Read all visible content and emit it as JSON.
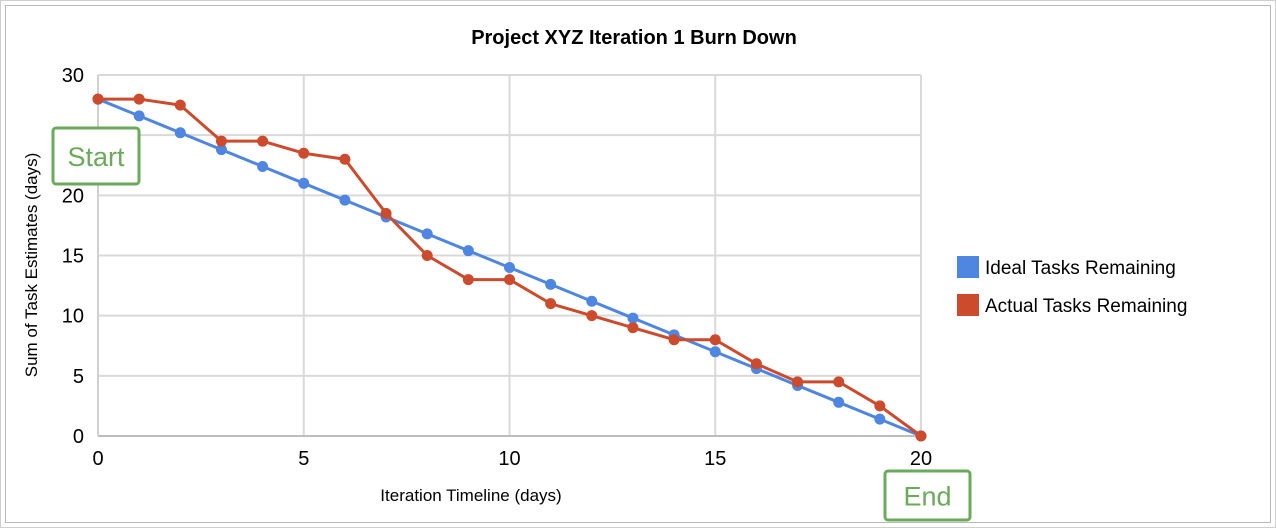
{
  "chart_data": {
    "type": "line",
    "title": "Project XYZ Iteration 1 Burn Down",
    "xlabel": "Iteration Timeline (days)",
    "ylabel": "Sum of Task Estimates (days)",
    "xlim": [
      0,
      20
    ],
    "ylim": [
      0,
      30
    ],
    "x_ticks": [
      "0",
      "5",
      "10",
      "15",
      "20"
    ],
    "y_ticks": [
      "0",
      "5",
      "10",
      "15",
      "20",
      "25",
      "30"
    ],
    "grid": true,
    "legend_position": "right",
    "x": [
      0,
      1,
      2,
      3,
      4,
      5,
      6,
      7,
      8,
      9,
      10,
      11,
      12,
      13,
      14,
      15,
      16,
      17,
      18,
      19,
      20
    ],
    "series": [
      {
        "name": "Ideal Tasks Remaining",
        "color": "#4f86e1",
        "values": [
          28,
          26.6,
          25.2,
          23.8,
          22.4,
          21,
          19.6,
          18.2,
          16.8,
          15.4,
          14,
          12.6,
          11.2,
          9.8,
          8.4,
          7,
          5.6,
          4.2,
          2.8,
          1.4,
          0
        ]
      },
      {
        "name": "Actual Tasks Remaining",
        "color": "#cc4b2c",
        "values": [
          28,
          28,
          27.5,
          24.5,
          24.5,
          23.5,
          23,
          18.5,
          15,
          13,
          13,
          11,
          10,
          9,
          8,
          8,
          6,
          4.5,
          4.5,
          2.5,
          0
        ]
      }
    ],
    "annotations": [
      {
        "text": "Start",
        "color": "#6aaa5a"
      },
      {
        "text": "End",
        "color": "#6aaa5a"
      }
    ]
  }
}
